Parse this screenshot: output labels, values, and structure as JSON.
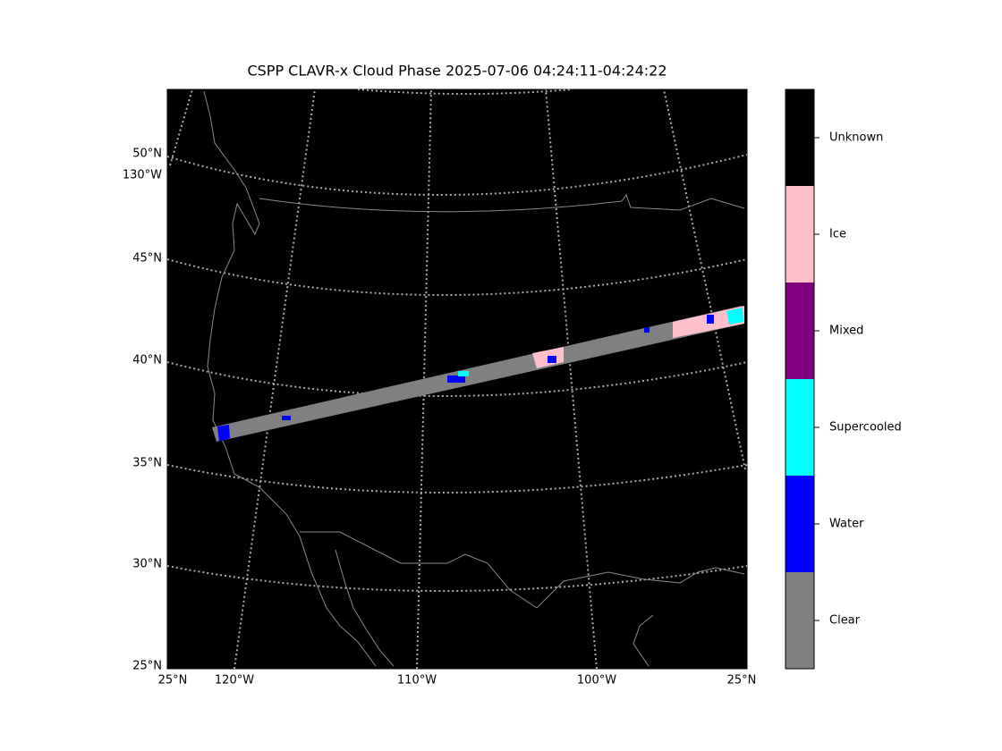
{
  "title": "CSPP CLAVR-x Cloud Phase 2025-07-06 04:24:11-04:24:22",
  "lat_labels": [
    "50°N",
    "130°W",
    "45°N",
    "40°N",
    "35°N",
    "30°N",
    "25°N"
  ],
  "bottom_labels": [
    "25°N",
    "120°W",
    "110°W",
    "100°W",
    "25°N"
  ],
  "colorbar": [
    {
      "label": "Unknown",
      "color": "#000000"
    },
    {
      "label": "Ice",
      "color": "#ffc0cb"
    },
    {
      "label": "Mixed",
      "color": "#800080"
    },
    {
      "label": "Supercooled",
      "color": "#00ffff"
    },
    {
      "label": "Water",
      "color": "#0000ff"
    },
    {
      "label": "Clear",
      "color": "#808080"
    }
  ]
}
